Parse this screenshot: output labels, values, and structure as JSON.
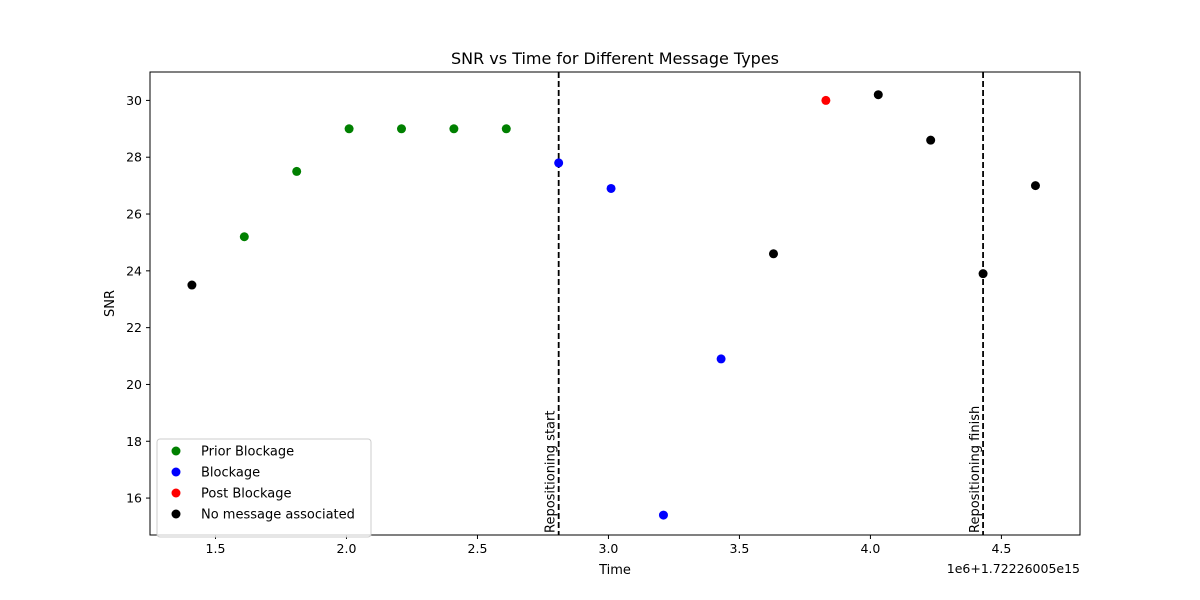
{
  "chart_data": {
    "type": "scatter",
    "title": "SNR vs Time for Different Message Types",
    "xlabel": "Time",
    "ylabel": "SNR",
    "x_offset_label": "1e6+1.72226005e15",
    "xlim": [
      1.25,
      4.8
    ],
    "ylim": [
      14.7,
      31.0
    ],
    "xticks": [
      1.5,
      2.0,
      2.5,
      3.0,
      3.5,
      4.0,
      4.5
    ],
    "xtick_labels": [
      "1.5",
      "2.0",
      "2.5",
      "3.0",
      "3.5",
      "4.0",
      "4.5"
    ],
    "yticks": [
      16,
      18,
      20,
      22,
      24,
      26,
      28,
      30
    ],
    "ytick_labels": [
      "16",
      "18",
      "20",
      "22",
      "24",
      "26",
      "28",
      "30"
    ],
    "grid": false,
    "legend_position": "lower-left",
    "series": [
      {
        "name": "Prior Blockage",
        "color": "#008000",
        "points": [
          {
            "x": 1.61,
            "y": 25.2
          },
          {
            "x": 1.81,
            "y": 27.5
          },
          {
            "x": 2.01,
            "y": 29.0
          },
          {
            "x": 2.21,
            "y": 29.0
          },
          {
            "x": 2.41,
            "y": 29.0
          },
          {
            "x": 2.61,
            "y": 29.0
          }
        ]
      },
      {
        "name": "Blockage",
        "color": "#0000ff",
        "points": [
          {
            "x": 2.81,
            "y": 27.8
          },
          {
            "x": 3.01,
            "y": 26.9
          },
          {
            "x": 3.21,
            "y": 15.4
          },
          {
            "x": 3.43,
            "y": 20.9
          }
        ]
      },
      {
        "name": "Post Blockage",
        "color": "#ff0000",
        "points": [
          {
            "x": 3.83,
            "y": 30.0
          }
        ]
      },
      {
        "name": "No message associated",
        "color": "#000000",
        "points": [
          {
            "x": 1.41,
            "y": 23.5
          },
          {
            "x": 3.63,
            "y": 24.6
          },
          {
            "x": 4.03,
            "y": 30.2
          },
          {
            "x": 4.23,
            "y": 28.6
          },
          {
            "x": 4.43,
            "y": 23.9
          },
          {
            "x": 4.63,
            "y": 27.0
          }
        ]
      }
    ],
    "vertical_lines": [
      {
        "x": 2.81,
        "label": "Repositioning start",
        "style": "dashed",
        "color": "#000000"
      },
      {
        "x": 4.43,
        "label": "Repositioning finish",
        "style": "dashed",
        "color": "#000000"
      }
    ]
  }
}
